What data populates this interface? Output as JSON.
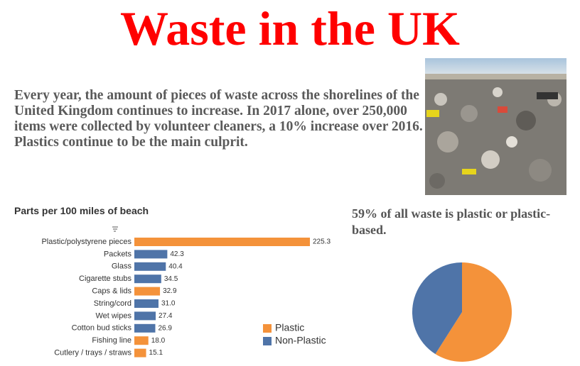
{
  "title": "Waste in the UK",
  "intro": "Every year, the amount of pieces of waste across the shorelines of the United Kingdom continues to increase.  In 2017 alone, over 250,000 items were collected by volunteer cleaners, a 10% increase over 2016.  Plastics continue to be the main culprit.",
  "chart_data": [
    {
      "type": "bar",
      "title": "Parts per 100 miles of beach",
      "categories": [
        "Plastic/polystyrene pieces",
        "Packets",
        "Glass",
        "Cigarette stubs",
        "Caps & lids",
        "String/cord",
        "Wet wipes",
        "Cotton bud sticks",
        "Fishing line",
        "Cutlery / trays / straws"
      ],
      "values": [
        225.3,
        42.3,
        40.4,
        34.5,
        32.9,
        31.0,
        27.4,
        26.9,
        18.0,
        15.1
      ],
      "value_labels": [
        "225.3",
        "42.3",
        "40.4",
        "34.5",
        "32.9",
        "31.0",
        "27.4",
        "26.9",
        "18.0",
        "15.1"
      ],
      "colors": [
        "#f4923a",
        "#4f74a8",
        "#4f74a8",
        "#4f74a8",
        "#f4923a",
        "#4f74a8",
        "#4f74a8",
        "#4f74a8",
        "#f4923a",
        "#f4923a"
      ]
    },
    {
      "type": "pie",
      "title": "59% of all waste is plastic or plastic-based.",
      "categories": [
        "Plastic",
        "Non-Plastic"
      ],
      "values": [
        59,
        41
      ],
      "colors": [
        "#f4923a",
        "#4f74a8"
      ]
    }
  ]
}
